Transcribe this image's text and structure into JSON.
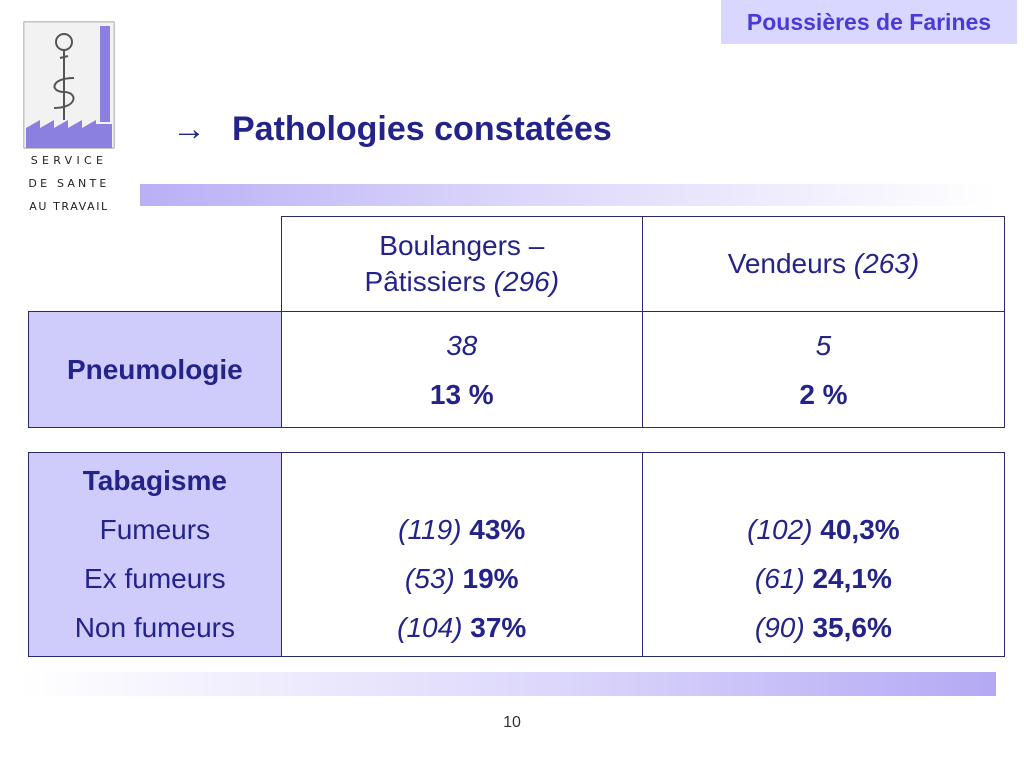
{
  "header": {
    "topic": "Poussières de Farines"
  },
  "logo": {
    "lines": [
      "SERVICE",
      "DE SANTE",
      "AU TRAVAIL"
    ]
  },
  "title": {
    "arrow": "→",
    "text": "Pathologies constatées"
  },
  "table1": {
    "col1": {
      "name": "Boulangers –",
      "name2": "Pâtissiers",
      "count": "(296)"
    },
    "col2": {
      "name": "Vendeurs",
      "count": "(263)"
    },
    "row_label": "Pneumologie",
    "col1_value": "38",
    "col1_pct": "13 %",
    "col2_value": "5",
    "col2_pct": "2 %"
  },
  "table2": {
    "heading": "Tabagisme",
    "rows": [
      {
        "label": "Fumeurs",
        "c1_count": "(119)",
        "c1_pct": "43%",
        "c2_count": "(102)",
        "c2_pct": "40,3%"
      },
      {
        "label": "Ex fumeurs",
        "c1_count": "(53)",
        "c1_pct": "19%",
        "c2_count": "(61)",
        "c2_pct": "24,1%"
      },
      {
        "label": "Non fumeurs",
        "c1_count": "(104)",
        "c1_pct": "37%",
        "c2_count": "(90)",
        "c2_pct": "35,6%"
      }
    ]
  },
  "footer": {
    "page_number": "10"
  },
  "colors": {
    "accent": "#d9d6ff",
    "title": "#23238a",
    "header_text": "#4a3bd6"
  }
}
